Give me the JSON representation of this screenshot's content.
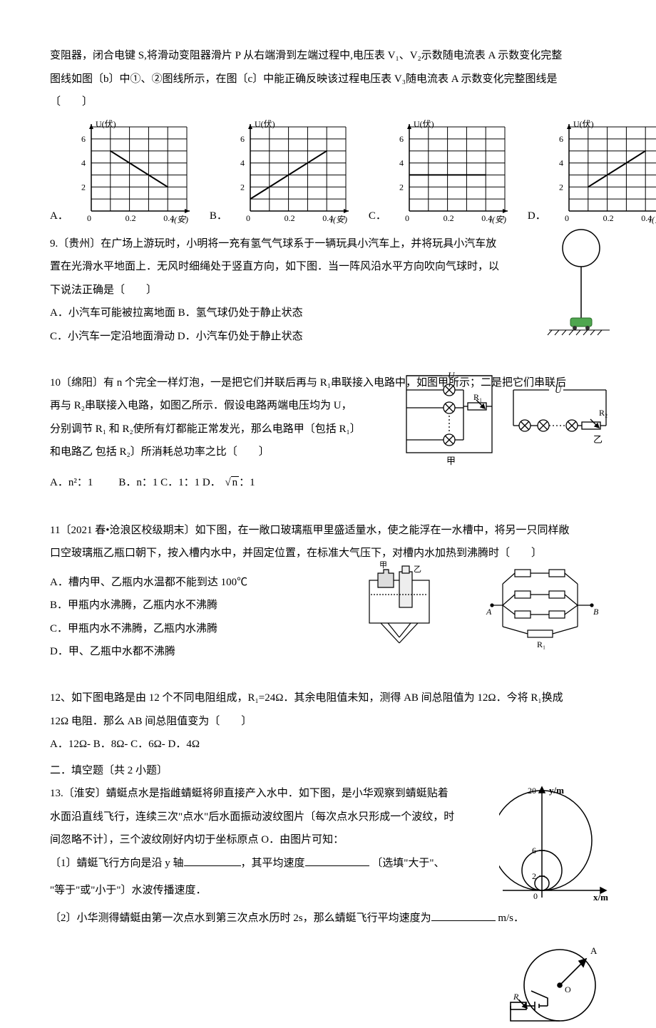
{
  "header": {
    "line1": "变阻器，闭合电键 S,将滑动变阻器滑片 P 从右端滑到左端过程中,电压表 V₁、V₂示数随电流表 A 示数变化完整",
    "line2": "图线如图〔b〕中①、②图线所示，在图〔c〕中能正确反映该过程电压表 V₃随电流表 A 示数变化完整图线是",
    "line3": "〔　　〕"
  },
  "graphs": {
    "xlabel": "I(安)",
    "ylabel": "U(伏)",
    "xlim": [
      0,
      0.5
    ],
    "xtick_labels": [
      "0",
      "0.2",
      "0.4"
    ],
    "xtick_vals": [
      0,
      0.2,
      0.4
    ],
    "ylim": [
      0,
      7
    ],
    "ytick_labels": [
      "2",
      "4",
      "6"
    ],
    "ytick_vals": [
      2,
      4,
      6
    ],
    "grid_color": "#000000",
    "A": {
      "label": "A．",
      "seg": [
        [
          0.1,
          5.0
        ],
        [
          0.4,
          2.0
        ]
      ]
    },
    "B": {
      "label": "B．",
      "seg": [
        [
          0,
          1.0
        ],
        [
          0.4,
          5.0
        ]
      ]
    },
    "C": {
      "label": "C．",
      "seg": [
        [
          0,
          3.0
        ],
        [
          0.4,
          3.0
        ]
      ]
    },
    "D": {
      "label": "D．",
      "seg": [
        [
          0.1,
          2.0
        ],
        [
          0.4,
          5.0
        ]
      ]
    }
  },
  "q9": {
    "stem1": "9.〔贵州〕在广场上游玩时，小明将一充有氢气气球系于一辆玩具小汽车上，并将玩具小汽车放",
    "stem2": "置在光滑水平地面上．无风时细绳处于竖直方向，如下图．当一阵风沿水平方向吹向气球时，以",
    "stem3": "下说法正确是〔　　〕",
    "A": "A．小汽车可能被拉离地面 B．氢气球仍处于静止状态",
    "C": "C．小汽车一定沿地面滑动 D．小汽车仍处于静止状态"
  },
  "q10": {
    "stem1": "10〔绵阳〕有 n 个完全一样灯泡，一是把它们并联后再与 R₁串联接入电路中，如图甲所示；二是把它们串联后",
    "stem2": "再与 R₂串联接入电路，如图乙所示．假设电路两端电压均为 U，",
    "stem3": "分别调节 R₁ 和 R₂使所有灯都能正常发光，那么电路甲〔包括 R₁〕",
    "stem4": "和电路乙  包括 R₂〕所消耗总功率之比〔　　〕",
    "optA": "A．n²：1",
    "optB": "B．n：1 C．1：1 D．",
    "optD_tail": "：1",
    "sqrt": "n",
    "labels": {
      "U": "U",
      "R1": "R₁",
      "R2": "R₂",
      "jia": "甲",
      "yi": "乙"
    }
  },
  "q11": {
    "stem1": "11〔2021 春•沧浪区校级期末〕如下图，在一敞口玻璃瓶甲里盛适量水，使之能浮在一水槽中，将另一只同样敞",
    "stem2": "口空玻璃瓶乙瓶口朝下，按入槽内水中，并固定位置，在标准大气压下，对槽内水加热到沸腾时〔　　〕",
    "A": "A．槽内甲、乙瓶内水温都不能到达 100℃",
    "B": "B．甲瓶内水沸腾，乙瓶内水不沸腾",
    "C": "C．甲瓶内水不沸腾，乙瓶内水沸腾",
    "D": "D．甲、乙瓶中水都不沸腾",
    "labels": {
      "jia": "甲",
      "yi": "乙",
      "A": "A",
      "B": "B",
      "R1": "R₁"
    }
  },
  "q12": {
    "stem1": "12、如下图电路是由 12 个不同电阻组成，R₁=24Ω．其余电阻值未知，测得 AB 间总阻值为 12Ω．今将 R₁换成",
    "stem2": "12Ω 电阻．那么 AB 间总阻值变为〔　　〕",
    "opts": "A．12Ω- B．8Ω- C．6Ω- D．4Ω"
  },
  "section2": "二．填空题〔共 2 小题〕",
  "q13": {
    "stem1": "13.〔淮安〕蜻蜓点水是指雌蜻蜓将卵直接产入水中．如下图，是小华观察到蜻蜓贴着",
    "stem2": "水面沿直线飞行，连续三次\"点水\"后水面振动波纹图片〔每次点水只形成一个波纹，时",
    "stem3": "间忽略不计〕，三个波纹刚好内切于坐标原点 O．由图片可知：",
    "p1a": "〔1〕蜻蜓飞行方向是沿 y 轴",
    "p1b": "，其平均速度",
    "p1c": " 〔选填\"大于\"、",
    "p1d": "\"等于\"或\"小于\"〕水波传播速度．",
    "p2a": "〔2〕小华测得蜻蜓由第一次点水到第三次点水历时 2s，那么蜻蜓飞行平均速度为",
    "p2b": " m/s．",
    "fig": {
      "xlabel": "x/m",
      "ylabel": "y/m",
      "ticks": [
        "2",
        "6",
        "20"
      ]
    }
  },
  "bottom": {
    "A": "A",
    "O": "O",
    "R": "R"
  }
}
